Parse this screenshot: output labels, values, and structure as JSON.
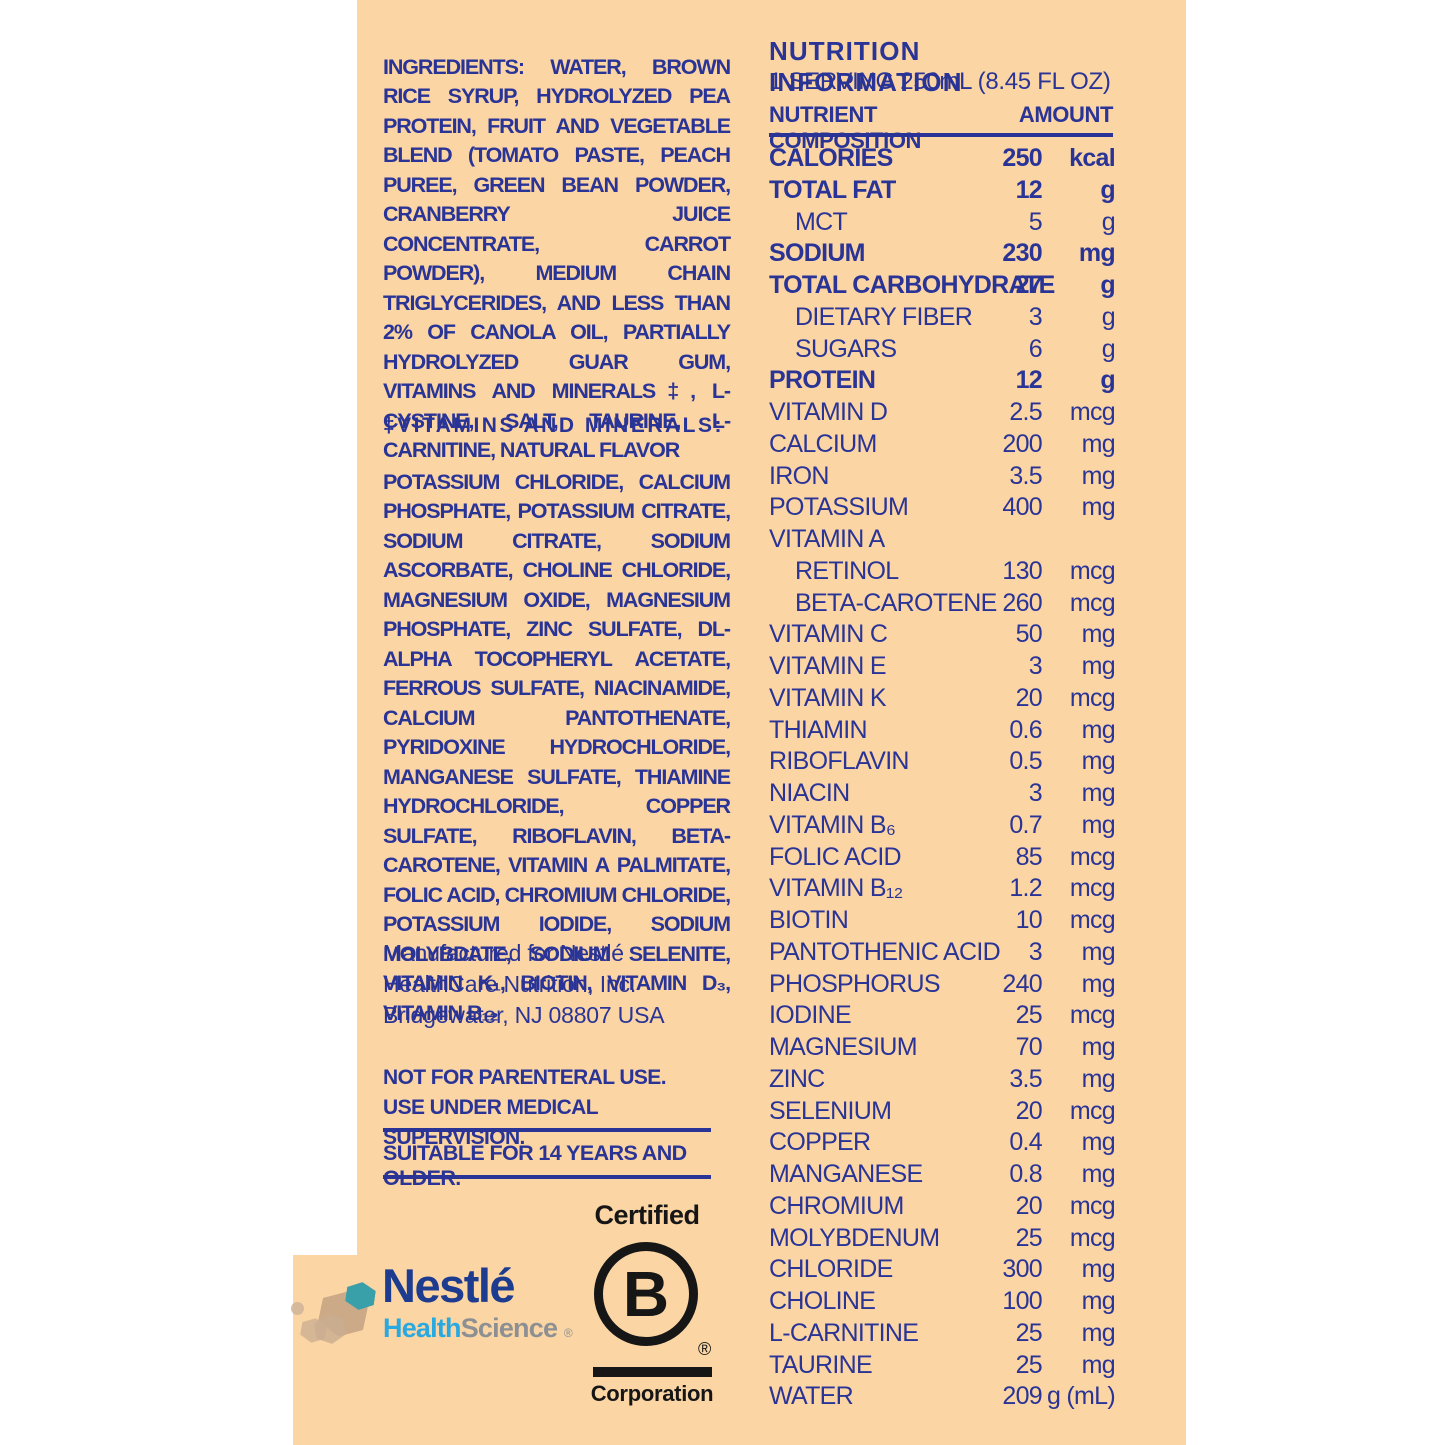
{
  "colors": {
    "label_background": "#fbd5a4",
    "text_blue": "#293496",
    "nestle_navy": "#1d3c8f",
    "health_blue": "#2aa9e0",
    "science_gray": "#8d9093",
    "bcorp_black": "#161616",
    "hex_teal": "#399fa8",
    "hex_tan": "#c3a284"
  },
  "left": {
    "ingredients_title": "INGREDIENTS:",
    "ingredients_text": "WATER, BROWN RICE SYRUP, HYDROLYZED PEA PROTEIN, FRUIT AND VEGETABLE BLEND (TOMATO PASTE, PEACH PUREE, GREEN BEAN POWDER, CRANBERRY JUICE CONCENTRATE, CARROT POWDER), MEDIUM CHAIN TRIGLYCERIDES, AND LESS THAN 2% OF CANOLA OIL, PARTIALLY HYDROLYZED GUAR GUM, VITAMINS AND MINERALS‡, L-CYSTINE, SALT, TAURINE, L-CARNITINE, NATURAL FLAVOR",
    "vitamins_title": "‡VITAMINS AND MINERALS:",
    "vitamins_text": "POTASSIUM CHLORIDE, CALCIUM PHOSPHATE, POTASSIUM CITRATE, SODIUM CITRATE, SODIUM ASCORBATE, CHOLINE CHLORIDE, MAGNESIUM OXIDE, MAGNESIUM PHOSPHATE, ZINC SULFATE, DL-ALPHA TOCOPHERYL ACETATE, FERROUS SULFATE, NIACINAMIDE, CALCIUM PANTOTHENATE, PYRIDOXINE HYDROCHLORIDE, MANGANESE SULFATE, THIAMINE HYDROCHLORIDE, COPPER SULFATE, RIBOFLAVIN, BETA-CAROTENE, VITAMIN A PALMITATE, FOLIC ACID, CHROMIUM CHLORIDE, POTASSIUM IODIDE, SODIUM MOLYBDATE, SODIUM SELENITE, VITAMIN K₁, BIOTIN, VITAMIN D₃, VITAMIN B₁₂",
    "manufacturer": [
      "Manufactured for Nestlé",
      "HealthCare Nutrition, Inc.",
      "Bridgewater, NJ 08807 USA"
    ],
    "warning_line1": "NOT FOR PARENTERAL USE.",
    "warning_line2": "USE UNDER MEDICAL SUPERVISION.",
    "suitability": "SUITABLE FOR 14 YEARS AND OLDER."
  },
  "nutrition": {
    "title": "NUTRITION INFORMATION",
    "serving": "1 SERVING 250mL (8.45 FL OZ)",
    "col_nutrient": "NUTRIENT COMPOSITION",
    "col_amount": "AMOUNT",
    "rows": [
      {
        "name": "CALORIES",
        "amount": "250",
        "unit": "kcal",
        "bold": true,
        "indent": false
      },
      {
        "name": "TOTAL FAT",
        "amount": "12",
        "unit": "g",
        "bold": true,
        "indent": false
      },
      {
        "name": "MCT",
        "amount": "5",
        "unit": "g",
        "bold": false,
        "indent": true
      },
      {
        "name": "SODIUM",
        "amount": "230",
        "unit": "mg",
        "bold": true,
        "indent": false
      },
      {
        "name": "TOTAL CARBOHYDRATE",
        "amount": "27",
        "unit": "g",
        "bold": true,
        "indent": false
      },
      {
        "name": "DIETARY FIBER",
        "amount": "3",
        "unit": "g",
        "bold": false,
        "indent": true
      },
      {
        "name": "SUGARS",
        "amount": "6",
        "unit": "g",
        "bold": false,
        "indent": true
      },
      {
        "name": "PROTEIN",
        "amount": "12",
        "unit": "g",
        "bold": true,
        "indent": false
      },
      {
        "name": "VITAMIN D",
        "amount": "2.5",
        "unit": "mcg",
        "bold": false,
        "indent": false
      },
      {
        "name": "CALCIUM",
        "amount": "200",
        "unit": "mg",
        "bold": false,
        "indent": false
      },
      {
        "name": "IRON",
        "amount": "3.5",
        "unit": "mg",
        "bold": false,
        "indent": false
      },
      {
        "name": "POTASSIUM",
        "amount": "400",
        "unit": "mg",
        "bold": false,
        "indent": false
      },
      {
        "name": "VITAMIN A",
        "amount": "",
        "unit": "",
        "bold": false,
        "indent": false
      },
      {
        "name": "RETINOL",
        "amount": "130",
        "unit": "mcg",
        "bold": false,
        "indent": true
      },
      {
        "name": "BETA-CAROTENE",
        "amount": "260",
        "unit": "mcg",
        "bold": false,
        "indent": true
      },
      {
        "name": "VITAMIN C",
        "amount": "50",
        "unit": "mg",
        "bold": false,
        "indent": false
      },
      {
        "name": "VITAMIN E",
        "amount": "3",
        "unit": "mg",
        "bold": false,
        "indent": false
      },
      {
        "name": "VITAMIN K",
        "amount": "20",
        "unit": "mcg",
        "bold": false,
        "indent": false
      },
      {
        "name": "THIAMIN",
        "amount": "0.6",
        "unit": "mg",
        "bold": false,
        "indent": false
      },
      {
        "name": "RIBOFLAVIN",
        "amount": "0.5",
        "unit": "mg",
        "bold": false,
        "indent": false
      },
      {
        "name": "NIACIN",
        "amount": "3",
        "unit": "mg",
        "bold": false,
        "indent": false
      },
      {
        "name": "VITAMIN B₆",
        "amount": "0.7",
        "unit": "mg",
        "bold": false,
        "indent": false
      },
      {
        "name": "FOLIC ACID",
        "amount": "85",
        "unit": "mcg",
        "bold": false,
        "indent": false
      },
      {
        "name": "VITAMIN B₁₂",
        "amount": "1.2",
        "unit": "mcg",
        "bold": false,
        "indent": false
      },
      {
        "name": "BIOTIN",
        "amount": "10",
        "unit": "mcg",
        "bold": false,
        "indent": false
      },
      {
        "name": "PANTOTHENIC ACID",
        "amount": "3",
        "unit": "mg",
        "bold": false,
        "indent": false
      },
      {
        "name": "PHOSPHORUS",
        "amount": "240",
        "unit": "mg",
        "bold": false,
        "indent": false
      },
      {
        "name": "IODINE",
        "amount": "25",
        "unit": "mcg",
        "bold": false,
        "indent": false
      },
      {
        "name": "MAGNESIUM",
        "amount": "70",
        "unit": "mg",
        "bold": false,
        "indent": false
      },
      {
        "name": "ZINC",
        "amount": "3.5",
        "unit": "mg",
        "bold": false,
        "indent": false
      },
      {
        "name": "SELENIUM",
        "amount": "20",
        "unit": "mcg",
        "bold": false,
        "indent": false
      },
      {
        "name": "COPPER",
        "amount": "0.4",
        "unit": "mg",
        "bold": false,
        "indent": false
      },
      {
        "name": "MANGANESE",
        "amount": "0.8",
        "unit": "mg",
        "bold": false,
        "indent": false
      },
      {
        "name": "CHROMIUM",
        "amount": "20",
        "unit": "mcg",
        "bold": false,
        "indent": false
      },
      {
        "name": "MOLYBDENUM",
        "amount": "25",
        "unit": "mcg",
        "bold": false,
        "indent": false
      },
      {
        "name": "CHLORIDE",
        "amount": "300",
        "unit": "mg",
        "bold": false,
        "indent": false
      },
      {
        "name": "CHOLINE",
        "amount": "100",
        "unit": "mg",
        "bold": false,
        "indent": false
      },
      {
        "name": "L-CARNITINE",
        "amount": "25",
        "unit": "mg",
        "bold": false,
        "indent": false
      },
      {
        "name": "TAURINE",
        "amount": "25",
        "unit": "mg",
        "bold": false,
        "indent": false
      },
      {
        "name": "WATER",
        "amount": "209",
        "unit": "g (mL)",
        "bold": false,
        "indent": false
      }
    ]
  },
  "logos": {
    "nestle_wordmark": "Nestlé",
    "health": "Health",
    "science": "Science",
    "registered": "®",
    "bcorp_certified": "Certified",
    "bcorp_b": "B",
    "bcorp_registered": "®",
    "bcorp_corporation": "Corporation"
  }
}
